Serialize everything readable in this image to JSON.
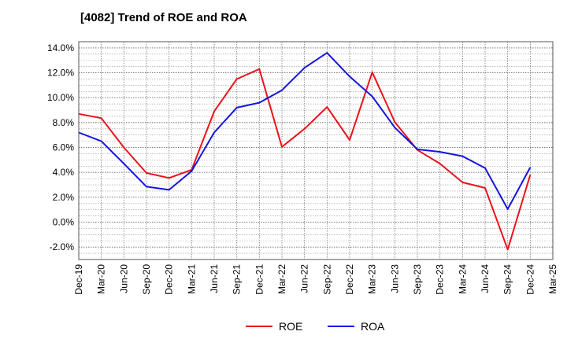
{
  "chart_data": {
    "type": "line",
    "title": "[4082]  Trend of ROE and ROA",
    "categories": [
      "Dec-19",
      "Mar-20",
      "Jun-20",
      "Sep-20",
      "Dec-20",
      "Mar-21",
      "Jun-21",
      "Sep-21",
      "Dec-21",
      "Mar-22",
      "Jun-22",
      "Sep-22",
      "Dec-22",
      "Mar-23",
      "Jun-23",
      "Sep-23",
      "Dec-23",
      "Mar-24",
      "Jun-24",
      "Sep-24",
      "Dec-24",
      "Mar-25"
    ],
    "y_ticks": [
      "14.0%",
      "12.0%",
      "10.0%",
      "8.0%",
      "6.0%",
      "4.0%",
      "2.0%",
      "0.0%",
      "-2.0%"
    ],
    "ylim": [
      -3.0,
      14.5
    ],
    "grid": true,
    "legend_position": "bottom",
    "series": [
      {
        "name": "ROE",
        "color": "#e8141b",
        "values": [
          8.7,
          8.35,
          6.0,
          3.95,
          3.55,
          4.2,
          8.9,
          11.5,
          12.3,
          6.05,
          7.5,
          9.25,
          6.6,
          12.05,
          8.05,
          5.8,
          4.7,
          3.2,
          2.75,
          -2.2,
          3.8,
          null
        ]
      },
      {
        "name": "ROA",
        "color": "#1414e0",
        "values": [
          7.2,
          6.5,
          4.7,
          2.85,
          2.6,
          4.1,
          7.2,
          9.2,
          9.6,
          10.6,
          12.4,
          13.6,
          11.7,
          10.1,
          7.6,
          5.85,
          5.65,
          5.3,
          4.35,
          1.05,
          4.4,
          null
        ]
      }
    ]
  }
}
